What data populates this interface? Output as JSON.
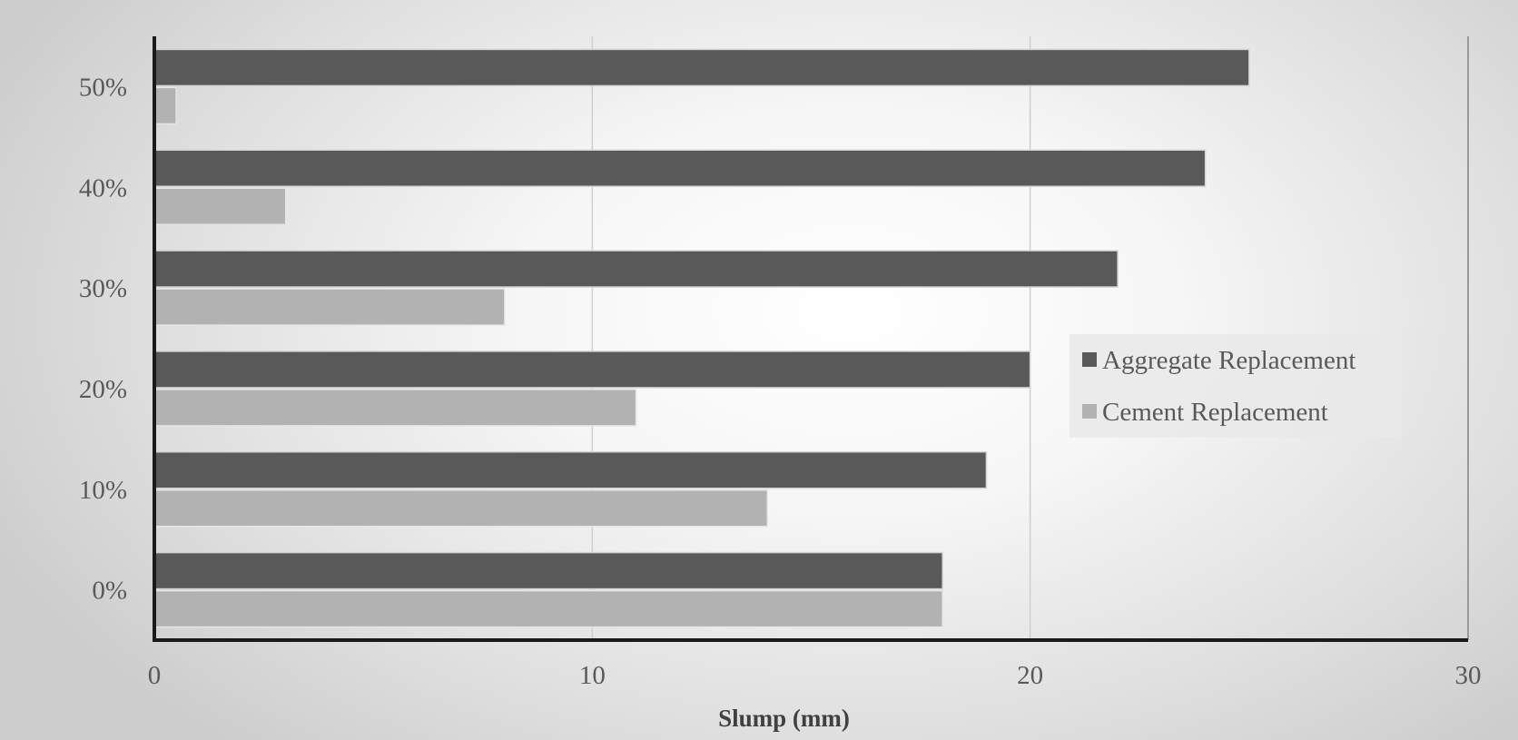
{
  "chart_data": {
    "type": "bar",
    "orientation": "horizontal",
    "title": "",
    "xlabel": "Slump (mm)",
    "ylabel": "",
    "categories": [
      "0%",
      "10%",
      "20%",
      "30%",
      "40%",
      "50%"
    ],
    "series": [
      {
        "name": "Aggregate Replacement",
        "color": "#595959",
        "values": [
          18,
          19,
          20,
          22,
          24,
          25
        ]
      },
      {
        "name": "Cement Replacement",
        "color": "#b2b2b2",
        "values": [
          18,
          14,
          11,
          8,
          3,
          0.5
        ]
      }
    ],
    "xlim": [
      0,
      30
    ],
    "xticks": [
      "0",
      "10",
      "20",
      "30"
    ],
    "grid": "vertical",
    "legend_position": "right"
  }
}
